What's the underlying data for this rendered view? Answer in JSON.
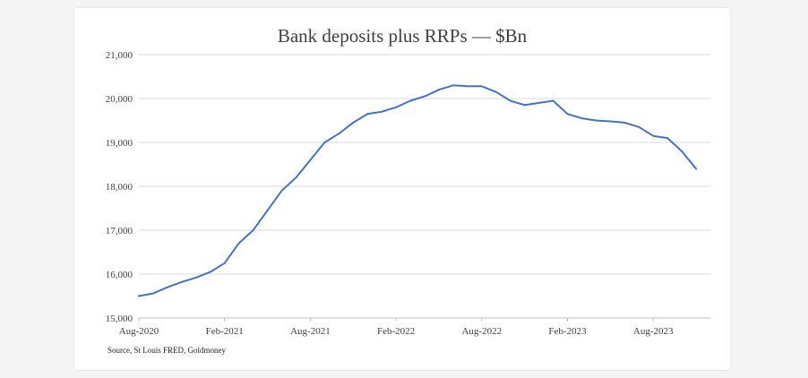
{
  "chart_data": {
    "type": "line",
    "title": "Bank deposits plus RRPs — $Bn",
    "source": "Source, St Louis FRED, Goldmoney",
    "ylim": [
      15000,
      21000
    ],
    "yticks": [
      15000,
      16000,
      17000,
      18000,
      19000,
      20000,
      21000
    ],
    "ytick_labels": [
      "15,000",
      "16,000",
      "17,000",
      "18,000",
      "19,000",
      "20,000",
      "21,000"
    ],
    "xlim": [
      "2020-08",
      "2023-12"
    ],
    "xticks": [
      "2020-08",
      "2021-02",
      "2021-08",
      "2022-02",
      "2022-08",
      "2023-02",
      "2023-08"
    ],
    "xtick_labels": [
      "Aug-2020",
      "Feb-2021",
      "Aug-2021",
      "Feb-2022",
      "Aug-2022",
      "Feb-2023",
      "Aug-2023"
    ],
    "grid": "horizontal",
    "line_color": "#4472c4",
    "series": [
      {
        "x": [
          "2020-08",
          "2020-09",
          "2020-10",
          "2020-11",
          "2020-12",
          "2021-01",
          "2021-02",
          "2021-03",
          "2021-04",
          "2021-05",
          "2021-06",
          "2021-07",
          "2021-08",
          "2021-09",
          "2021-10",
          "2021-11",
          "2021-12",
          "2022-01",
          "2022-02",
          "2022-03",
          "2022-04",
          "2022-05",
          "2022-06",
          "2022-07",
          "2022-08",
          "2022-09",
          "2022-10",
          "2022-11",
          "2022-12",
          "2023-01",
          "2023-02",
          "2023-03",
          "2023-04",
          "2023-05",
          "2023-06",
          "2023-07",
          "2023-08",
          "2023-09",
          "2023-10",
          "2023-11"
        ],
        "values": [
          15500,
          15560,
          15700,
          15820,
          15920,
          16050,
          16250,
          16700,
          17000,
          17450,
          17900,
          18200,
          18600,
          19000,
          19200,
          19450,
          19650,
          19700,
          19800,
          19950,
          20050,
          20200,
          20300,
          20280,
          20280,
          20150,
          19950,
          19850,
          19900,
          19950,
          19650,
          19550,
          19500,
          19480,
          19450,
          19350,
          19150,
          19100,
          18800,
          18400
        ]
      }
    ]
  }
}
